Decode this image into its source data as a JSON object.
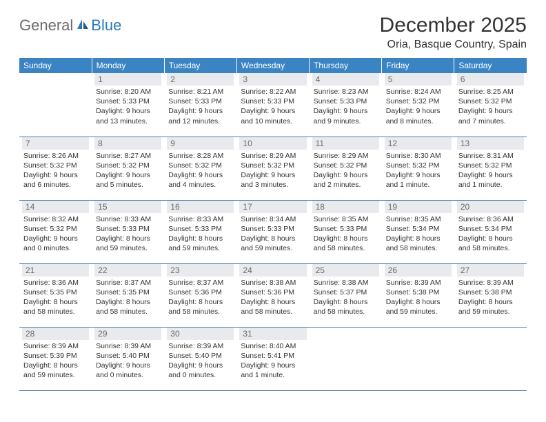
{
  "logo": {
    "text1": "General",
    "text2": "Blue"
  },
  "title": "December 2025",
  "location": "Oria, Basque Country, Spain",
  "dayHeaders": [
    "Sunday",
    "Monday",
    "Tuesday",
    "Wednesday",
    "Thursday",
    "Friday",
    "Saturday"
  ],
  "colors": {
    "headerBg": "#3b84c4",
    "headerText": "#ffffff",
    "dayNumBg": "#e8eaed",
    "dayNumText": "#6b6b6b",
    "bodyText": "#333333",
    "rowBorder": "#4a7ba8",
    "logoGray": "#6b6b6b",
    "logoBlue": "#2a7ab8"
  },
  "weeks": [
    [
      null,
      {
        "n": "1",
        "sr": "Sunrise: 8:20 AM",
        "ss": "Sunset: 5:33 PM",
        "dl": "Daylight: 9 hours and 13 minutes."
      },
      {
        "n": "2",
        "sr": "Sunrise: 8:21 AM",
        "ss": "Sunset: 5:33 PM",
        "dl": "Daylight: 9 hours and 12 minutes."
      },
      {
        "n": "3",
        "sr": "Sunrise: 8:22 AM",
        "ss": "Sunset: 5:33 PM",
        "dl": "Daylight: 9 hours and 10 minutes."
      },
      {
        "n": "4",
        "sr": "Sunrise: 8:23 AM",
        "ss": "Sunset: 5:33 PM",
        "dl": "Daylight: 9 hours and 9 minutes."
      },
      {
        "n": "5",
        "sr": "Sunrise: 8:24 AM",
        "ss": "Sunset: 5:32 PM",
        "dl": "Daylight: 9 hours and 8 minutes."
      },
      {
        "n": "6",
        "sr": "Sunrise: 8:25 AM",
        "ss": "Sunset: 5:32 PM",
        "dl": "Daylight: 9 hours and 7 minutes."
      }
    ],
    [
      {
        "n": "7",
        "sr": "Sunrise: 8:26 AM",
        "ss": "Sunset: 5:32 PM",
        "dl": "Daylight: 9 hours and 6 minutes."
      },
      {
        "n": "8",
        "sr": "Sunrise: 8:27 AM",
        "ss": "Sunset: 5:32 PM",
        "dl": "Daylight: 9 hours and 5 minutes."
      },
      {
        "n": "9",
        "sr": "Sunrise: 8:28 AM",
        "ss": "Sunset: 5:32 PM",
        "dl": "Daylight: 9 hours and 4 minutes."
      },
      {
        "n": "10",
        "sr": "Sunrise: 8:29 AM",
        "ss": "Sunset: 5:32 PM",
        "dl": "Daylight: 9 hours and 3 minutes."
      },
      {
        "n": "11",
        "sr": "Sunrise: 8:29 AM",
        "ss": "Sunset: 5:32 PM",
        "dl": "Daylight: 9 hours and 2 minutes."
      },
      {
        "n": "12",
        "sr": "Sunrise: 8:30 AM",
        "ss": "Sunset: 5:32 PM",
        "dl": "Daylight: 9 hours and 1 minute."
      },
      {
        "n": "13",
        "sr": "Sunrise: 8:31 AM",
        "ss": "Sunset: 5:32 PM",
        "dl": "Daylight: 9 hours and 1 minute."
      }
    ],
    [
      {
        "n": "14",
        "sr": "Sunrise: 8:32 AM",
        "ss": "Sunset: 5:32 PM",
        "dl": "Daylight: 9 hours and 0 minutes."
      },
      {
        "n": "15",
        "sr": "Sunrise: 8:33 AM",
        "ss": "Sunset: 5:33 PM",
        "dl": "Daylight: 8 hours and 59 minutes."
      },
      {
        "n": "16",
        "sr": "Sunrise: 8:33 AM",
        "ss": "Sunset: 5:33 PM",
        "dl": "Daylight: 8 hours and 59 minutes."
      },
      {
        "n": "17",
        "sr": "Sunrise: 8:34 AM",
        "ss": "Sunset: 5:33 PM",
        "dl": "Daylight: 8 hours and 59 minutes."
      },
      {
        "n": "18",
        "sr": "Sunrise: 8:35 AM",
        "ss": "Sunset: 5:33 PM",
        "dl": "Daylight: 8 hours and 58 minutes."
      },
      {
        "n": "19",
        "sr": "Sunrise: 8:35 AM",
        "ss": "Sunset: 5:34 PM",
        "dl": "Daylight: 8 hours and 58 minutes."
      },
      {
        "n": "20",
        "sr": "Sunrise: 8:36 AM",
        "ss": "Sunset: 5:34 PM",
        "dl": "Daylight: 8 hours and 58 minutes."
      }
    ],
    [
      {
        "n": "21",
        "sr": "Sunrise: 8:36 AM",
        "ss": "Sunset: 5:35 PM",
        "dl": "Daylight: 8 hours and 58 minutes."
      },
      {
        "n": "22",
        "sr": "Sunrise: 8:37 AM",
        "ss": "Sunset: 5:35 PM",
        "dl": "Daylight: 8 hours and 58 minutes."
      },
      {
        "n": "23",
        "sr": "Sunrise: 8:37 AM",
        "ss": "Sunset: 5:36 PM",
        "dl": "Daylight: 8 hours and 58 minutes."
      },
      {
        "n": "24",
        "sr": "Sunrise: 8:38 AM",
        "ss": "Sunset: 5:36 PM",
        "dl": "Daylight: 8 hours and 58 minutes."
      },
      {
        "n": "25",
        "sr": "Sunrise: 8:38 AM",
        "ss": "Sunset: 5:37 PM",
        "dl": "Daylight: 8 hours and 58 minutes."
      },
      {
        "n": "26",
        "sr": "Sunrise: 8:39 AM",
        "ss": "Sunset: 5:38 PM",
        "dl": "Daylight: 8 hours and 59 minutes."
      },
      {
        "n": "27",
        "sr": "Sunrise: 8:39 AM",
        "ss": "Sunset: 5:38 PM",
        "dl": "Daylight: 8 hours and 59 minutes."
      }
    ],
    [
      {
        "n": "28",
        "sr": "Sunrise: 8:39 AM",
        "ss": "Sunset: 5:39 PM",
        "dl": "Daylight: 8 hours and 59 minutes."
      },
      {
        "n": "29",
        "sr": "Sunrise: 8:39 AM",
        "ss": "Sunset: 5:40 PM",
        "dl": "Daylight: 9 hours and 0 minutes."
      },
      {
        "n": "30",
        "sr": "Sunrise: 8:39 AM",
        "ss": "Sunset: 5:40 PM",
        "dl": "Daylight: 9 hours and 0 minutes."
      },
      {
        "n": "31",
        "sr": "Sunrise: 8:40 AM",
        "ss": "Sunset: 5:41 PM",
        "dl": "Daylight: 9 hours and 1 minute."
      },
      null,
      null,
      null
    ]
  ]
}
